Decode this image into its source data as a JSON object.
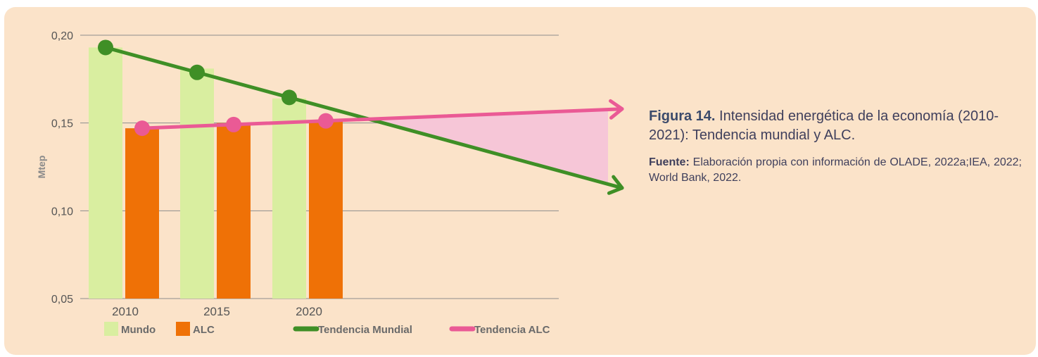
{
  "caption": {
    "figure_label": "Figura 14.",
    "figure_text": "Intensidad energética de la economía (2010-2021): Tendencia mundial y ALC.",
    "source_label": "Fuente:",
    "source_text": "Elaboración propia con información de OLADE, 2022a;IEA, 2022; World Bank, 2022."
  },
  "colors": {
    "panel_bg": "#fbe3c9",
    "mundo": "#d9eea0",
    "alc": "#ef7106",
    "tendencia_mundial": "#3f8f26",
    "tendencia_alc": "#ea5a95",
    "shaded_gap": "#f6c6d7",
    "grid": "#8d8d8d",
    "text": "#555555"
  },
  "chart_data": {
    "type": "bar",
    "categories": [
      "2010",
      "2015",
      "2020"
    ],
    "series": [
      {
        "name": "Mundo",
        "values": [
          0.193,
          0.181,
          0.164
        ],
        "color": "#d9eea0"
      },
      {
        "name": "ALC",
        "values": [
          0.147,
          0.15,
          0.151
        ],
        "color": "#ef7106"
      }
    ],
    "trend_lines": [
      {
        "name": "Tendencia Mundial",
        "points": [
          0.193,
          0.181,
          0.164
        ],
        "end_value": 0.113,
        "color": "#3f8f26"
      },
      {
        "name": "Tendencia ALC",
        "points": [
          0.147,
          0.15,
          0.151
        ],
        "end_value": 0.158,
        "color": "#ea5a95"
      }
    ],
    "ylabel": "Mtep",
    "ylim": [
      0.05,
      0.2
    ],
    "yticks": [
      "0,05",
      "0,10",
      "0,15",
      "0,20"
    ],
    "grid": true,
    "legend": [
      "Mundo",
      "ALC",
      "Tendencia Mundial",
      "Tendencia ALC"
    ],
    "legend_position": "bottom"
  }
}
